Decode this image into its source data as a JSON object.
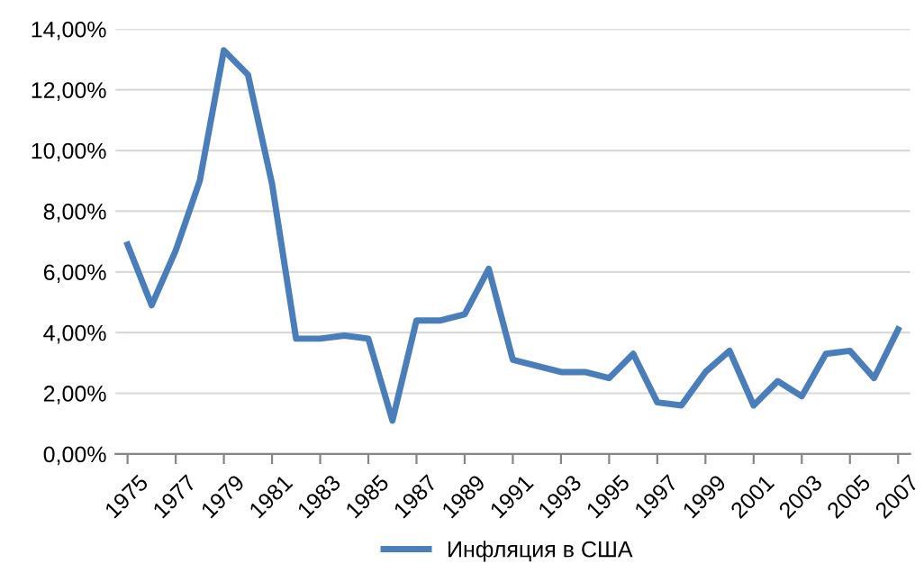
{
  "chart_data": {
    "type": "line",
    "categories": [
      "1975",
      null,
      "1977",
      null,
      "1979",
      null,
      "1981",
      null,
      "1983",
      null,
      "1985",
      null,
      "1987",
      null,
      "1989",
      null,
      "1991",
      null,
      "1993",
      null,
      "1995",
      null,
      "1997",
      null,
      "1999",
      null,
      "2001",
      null,
      "2003",
      null,
      "2005",
      null,
      "2007"
    ],
    "series": [
      {
        "name": "Инфляция в США",
        "color": "#4a7ebb",
        "values": [
          6.9,
          4.9,
          6.7,
          9.0,
          13.3,
          12.5,
          8.9,
          3.8,
          3.8,
          3.9,
          3.8,
          1.1,
          4.4,
          4.4,
          4.6,
          6.1,
          3.1,
          2.9,
          2.7,
          2.7,
          2.5,
          3.3,
          1.7,
          1.6,
          2.7,
          3.4,
          1.6,
          2.4,
          1.9,
          3.3,
          3.4,
          2.5,
          4.1
        ]
      }
    ],
    "ylim": [
      0,
      14
    ],
    "yticks": [
      {
        "value": 0,
        "label": "0,00%"
      },
      {
        "value": 2,
        "label": "2,00%"
      },
      {
        "value": 4,
        "label": "4,00%"
      },
      {
        "value": 6,
        "label": "6,00%"
      },
      {
        "value": 8,
        "label": "8,00%"
      },
      {
        "value": 10,
        "label": "10,00%"
      },
      {
        "value": 12,
        "label": "12,00%"
      },
      {
        "value": 14,
        "label": "14,00%"
      }
    ],
    "grid": "y",
    "legend": "bottom",
    "marker": "none",
    "line_style": "solid"
  }
}
